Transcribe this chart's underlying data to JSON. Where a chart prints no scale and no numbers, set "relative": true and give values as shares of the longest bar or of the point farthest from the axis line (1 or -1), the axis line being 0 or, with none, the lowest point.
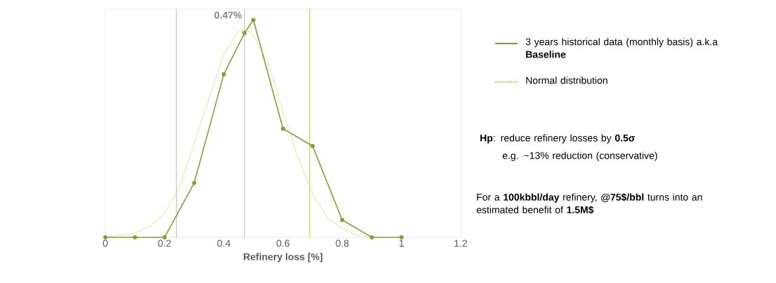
{
  "chart_data": {
    "type": "line",
    "xlabel": "Refinery loss [%]",
    "relative": true,
    "xlim": [
      0,
      1.2
    ],
    "xticks": [
      0,
      0.2,
      0.4,
      0.6,
      0.8,
      1,
      1.2
    ],
    "legend": "right",
    "grid": false,
    "series": [
      {
        "name": "3 years historical data (monthly basis) a.k.a **Baseline**",
        "color": "#84a035",
        "marker": "circle",
        "line_style": "solid",
        "x": [
          0,
          0.1,
          0.2,
          0.3,
          0.4,
          0.47,
          0.5,
          0.6,
          0.7,
          0.8,
          0.9,
          1.0
        ],
        "values": [
          0,
          0,
          0,
          0.25,
          0.75,
          0.94,
          1,
          0.5,
          0.42,
          0.08,
          0,
          0
        ]
      },
      {
        "name": "Normal distribution",
        "color": "#d4bc1c",
        "marker": "none",
        "line_style": "dotted",
        "x": [
          0,
          0.1,
          0.15,
          0.2,
          0.25,
          0.3,
          0.35,
          0.4,
          0.45,
          0.47,
          0.5,
          0.55,
          0.6,
          0.65,
          0.7,
          0.75,
          0.8,
          0.85,
          0.9
        ],
        "values": [
          0,
          0.02,
          0.05,
          0.11,
          0.23,
          0.43,
          0.64,
          0.84,
          0.95,
          0.96,
          0.93,
          0.8,
          0.58,
          0.37,
          0.2,
          0.09,
          0.04,
          0.01,
          0
        ]
      }
    ],
    "ref_lines": [
      {
        "axis": "x",
        "value": 0.24,
        "label": null,
        "color": "#a6a6a6"
      },
      {
        "axis": "x",
        "value": 0.47,
        "label": "0.47%",
        "color": "#a6a6a6"
      },
      {
        "axis": "x",
        "value": 0.69,
        "label": null,
        "color": "#c9a800"
      }
    ],
    "annotations": [
      "**Hp**: reduce refinery losses by **0.5σ**",
      "e.g. ~13% reduction (conservative)",
      "For a **100kbbl/day** refinery, **@75$/bbl** turns into an estimated benefit of **1.5M$**"
    ]
  }
}
